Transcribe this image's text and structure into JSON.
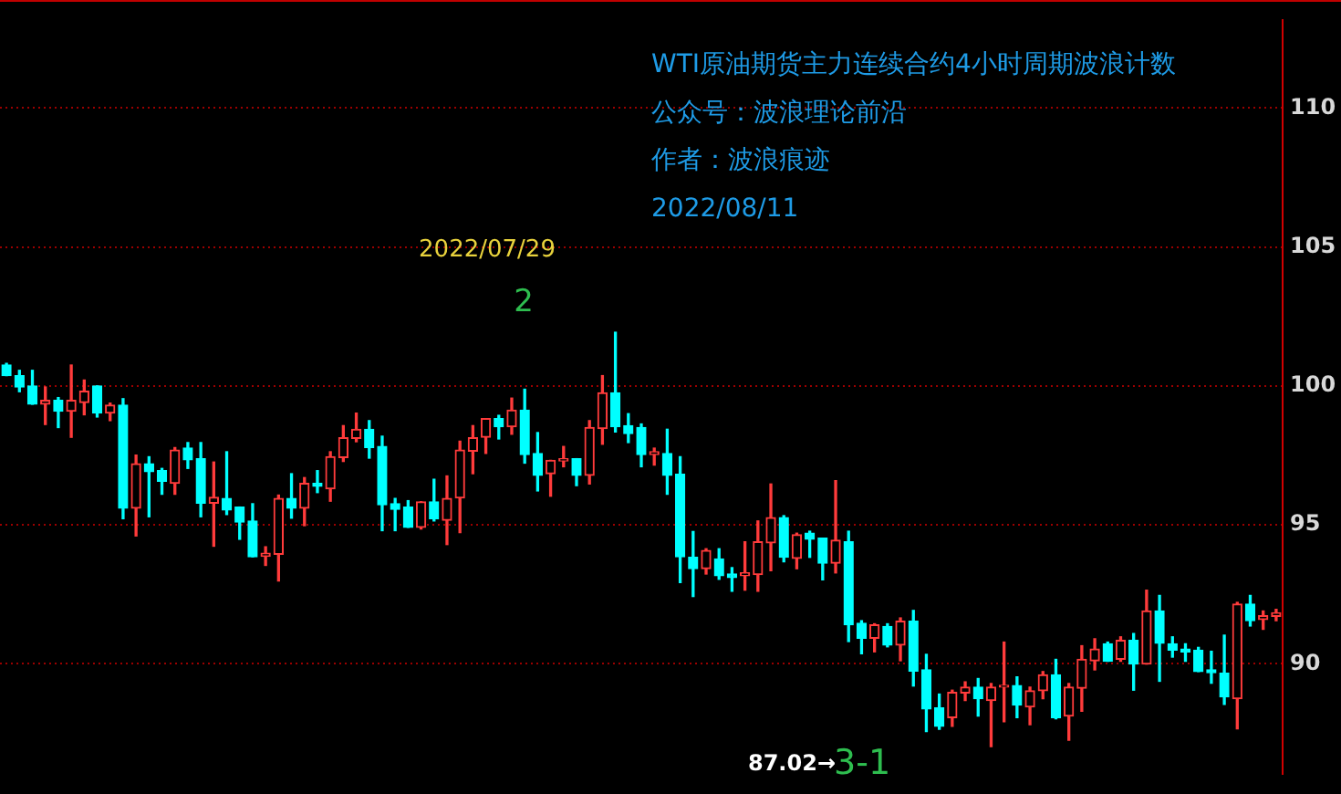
{
  "chart_data": {
    "type": "candlestick",
    "title": "WTI原油期货主力连续合约4小时周期波浪计数",
    "annotations": [
      "公众号：波浪理论前沿",
      "作者：波浪痕迹",
      "2022/08/11",
      "2022/07/29",
      "2",
      "87.02→",
      "3-1"
    ],
    "categories": [
      null,
      null,
      null,
      null,
      null,
      null,
      null,
      null,
      null,
      null,
      null,
      null,
      null,
      null,
      null,
      null,
      null,
      null,
      null,
      null,
      null,
      null,
      null,
      null,
      null,
      null,
      null,
      null,
      null,
      null,
      null,
      null,
      null,
      null,
      null,
      null,
      null,
      null,
      null,
      null,
      null,
      null,
      null,
      null,
      null,
      null,
      null,
      null,
      null,
      null,
      null,
      null,
      null,
      null,
      null,
      null,
      null,
      null,
      null,
      null,
      null,
      null,
      null,
      null,
      null,
      null,
      null,
      null,
      null,
      null,
      null,
      null,
      null,
      null,
      null,
      null,
      null,
      null,
      null,
      null,
      null,
      null,
      null,
      null,
      null,
      null,
      null,
      null,
      null,
      null,
      null,
      null,
      null,
      null,
      null,
      null,
      null,
      null,
      null
    ],
    "ohlc": [
      [
        100.75,
        100.81,
        100.37,
        100.37
      ],
      [
        100.37,
        100.56,
        99.79,
        99.96
      ],
      [
        100.0,
        100.56,
        99.34,
        99.34
      ],
      [
        99.34,
        99.96,
        98.61,
        99.48
      ],
      [
        99.48,
        99.58,
        98.5,
        99.09
      ],
      [
        99.09,
        100.75,
        98.15,
        99.48
      ],
      [
        99.4,
        100.21,
        98.96,
        99.81
      ],
      [
        100.0,
        100.0,
        98.88,
        99.02
      ],
      [
        99.02,
        99.38,
        98.75,
        99.31
      ],
      [
        99.31,
        99.54,
        95.22,
        95.6
      ],
      [
        95.6,
        97.51,
        94.6,
        97.2
      ],
      [
        97.2,
        97.45,
        95.29,
        96.91
      ],
      [
        96.95,
        97.03,
        96.1,
        96.57
      ],
      [
        96.49,
        97.78,
        96.1,
        97.69
      ],
      [
        97.76,
        97.96,
        97.03,
        97.34
      ],
      [
        97.38,
        97.96,
        95.29,
        95.78
      ],
      [
        95.78,
        97.26,
        94.23,
        95.99
      ],
      [
        95.95,
        97.63,
        95.37,
        95.53
      ],
      [
        95.64,
        95.64,
        94.48,
        95.1
      ],
      [
        95.14,
        95.76,
        93.85,
        93.85
      ],
      [
        93.87,
        94.21,
        93.54,
        93.98
      ],
      [
        93.94,
        96.07,
        92.98,
        95.95
      ],
      [
        95.95,
        96.84,
        95.24,
        95.6
      ],
      [
        95.6,
        96.7,
        94.97,
        96.49
      ],
      [
        96.49,
        96.95,
        96.16,
        96.39
      ],
      [
        96.3,
        97.63,
        95.85,
        97.45
      ],
      [
        97.42,
        98.57,
        97.28,
        98.13
      ],
      [
        98.11,
        99.02,
        97.99,
        98.44
      ],
      [
        98.44,
        98.75,
        97.4,
        97.78
      ],
      [
        97.82,
        98.19,
        94.79,
        95.72
      ],
      [
        95.76,
        95.95,
        94.79,
        95.56
      ],
      [
        95.64,
        95.87,
        94.91,
        94.91
      ],
      [
        94.91,
        95.83,
        94.85,
        95.83
      ],
      [
        95.83,
        96.64,
        95.14,
        95.22
      ],
      [
        95.16,
        96.76,
        94.29,
        95.95
      ],
      [
        95.97,
        98.01,
        94.72,
        97.69
      ],
      [
        97.65,
        98.57,
        96.84,
        98.13
      ],
      [
        98.15,
        98.82,
        97.57,
        98.82
      ],
      [
        98.82,
        98.94,
        98.09,
        98.53
      ],
      [
        98.53,
        99.56,
        98.26,
        99.13
      ],
      [
        99.13,
        99.88,
        97.22,
        97.53
      ],
      [
        97.57,
        98.32,
        96.22,
        96.78
      ],
      [
        96.84,
        97.32,
        96.03,
        97.32
      ],
      [
        97.3,
        97.82,
        97.09,
        97.38
      ],
      [
        97.38,
        97.38,
        96.41,
        96.78
      ],
      [
        96.78,
        98.75,
        96.47,
        98.5
      ],
      [
        98.46,
        100.37,
        97.9,
        99.75
      ],
      [
        99.75,
        101.93,
        98.34,
        98.53
      ],
      [
        98.57,
        99.0,
        97.96,
        98.28
      ],
      [
        98.5,
        98.63,
        97.09,
        97.53
      ],
      [
        97.53,
        97.76,
        97.15,
        97.63
      ],
      [
        97.57,
        98.44,
        96.1,
        96.78
      ],
      [
        96.82,
        97.45,
        92.92,
        93.85
      ],
      [
        93.83,
        94.76,
        92.42,
        93.42
      ],
      [
        93.42,
        94.14,
        93.23,
        94.08
      ],
      [
        93.77,
        94.14,
        93.04,
        93.17
      ],
      [
        93.23,
        93.46,
        92.61,
        93.1
      ],
      [
        93.17,
        94.39,
        92.65,
        93.27
      ],
      [
        93.21,
        95.14,
        92.61,
        94.39
      ],
      [
        94.35,
        96.47,
        93.35,
        95.26
      ],
      [
        95.26,
        95.33,
        93.67,
        93.83
      ],
      [
        93.79,
        94.7,
        93.42,
        94.64
      ],
      [
        94.7,
        94.77,
        93.83,
        94.48
      ],
      [
        94.52,
        94.52,
        93.02,
        93.62
      ],
      [
        93.62,
        96.59,
        93.27,
        94.45
      ],
      [
        94.39,
        94.77,
        90.8,
        91.4
      ],
      [
        91.46,
        91.55,
        90.36,
        90.92
      ],
      [
        90.92,
        91.44,
        90.43,
        91.4
      ],
      [
        91.34,
        91.44,
        90.61,
        90.67
      ],
      [
        90.67,
        91.65,
        90.11,
        91.53
      ],
      [
        91.53,
        91.92,
        89.2,
        89.74
      ],
      [
        89.78,
        90.34,
        87.56,
        88.37
      ],
      [
        88.41,
        88.91,
        87.64,
        87.75
      ],
      [
        88.06,
        89.05,
        87.75,
        88.97
      ],
      [
        88.95,
        89.35,
        88.68,
        89.16
      ],
      [
        89.16,
        89.47,
        88.12,
        88.74
      ],
      [
        88.68,
        89.29,
        87.02,
        89.16
      ],
      [
        89.16,
        90.78,
        87.91,
        89.22
      ],
      [
        89.22,
        89.53,
        88.06,
        88.51
      ],
      [
        88.45,
        89.16,
        87.81,
        89.03
      ],
      [
        89.03,
        89.72,
        88.74,
        89.6
      ],
      [
        89.6,
        90.16,
        88.02,
        88.06
      ],
      [
        88.12,
        89.29,
        87.25,
        89.16
      ],
      [
        89.12,
        90.65,
        88.29,
        90.16
      ],
      [
        90.11,
        90.9,
        89.78,
        90.53
      ],
      [
        90.72,
        90.78,
        90.09,
        90.09
      ],
      [
        90.16,
        90.97,
        90.09,
        90.84
      ],
      [
        90.84,
        91.09,
        89.05,
        89.99
      ],
      [
        89.99,
        92.65,
        89.99,
        91.9
      ],
      [
        91.9,
        92.46,
        89.37,
        90.74
      ],
      [
        90.72,
        90.97,
        90.24,
        90.49
      ],
      [
        90.53,
        90.72,
        90.09,
        90.43
      ],
      [
        90.49,
        90.59,
        89.72,
        89.72
      ],
      [
        89.78,
        90.45,
        89.3,
        89.68
      ],
      [
        89.66,
        91.03,
        88.54,
        88.81
      ],
      [
        88.74,
        92.21,
        87.66,
        92.15
      ],
      [
        92.15,
        92.46,
        91.36,
        91.55
      ],
      [
        91.59,
        91.9,
        91.24,
        91.73
      ],
      [
        91.71,
        91.96,
        91.55,
        91.84
      ]
    ],
    "colors": [
      "#00ffff",
      "#00ffff",
      "#00ffff",
      "#ff3b3b",
      "#00ffff",
      "#ff3b3b",
      "#ff3b3b",
      "#00ffff",
      "#ff3b3b",
      "#00ffff",
      "#ff3b3b",
      "#00ffff",
      "#00ffff",
      "#ff3b3b",
      "#00ffff",
      "#00ffff",
      "#ff3b3b",
      "#00ffff",
      "#00ffff",
      "#00ffff",
      "#ff3b3b",
      "#ff3b3b",
      "#00ffff",
      "#ff3b3b",
      "#00ffff",
      "#ff3b3b",
      "#ff3b3b",
      "#ff3b3b",
      "#00ffff",
      "#00ffff",
      "#00ffff",
      "#00ffff",
      "#ff3b3b",
      "#00ffff",
      "#ff3b3b",
      "#ff3b3b",
      "#ff3b3b",
      "#ff3b3b",
      "#00ffff",
      "#ff3b3b",
      "#00ffff",
      "#00ffff",
      "#ff3b3b",
      "#ff3b3b",
      "#00ffff",
      "#ff3b3b",
      "#ff3b3b",
      "#00ffff",
      "#00ffff",
      "#00ffff",
      "#ff3b3b",
      "#00ffff",
      "#00ffff",
      "#00ffff",
      "#ff3b3b",
      "#00ffff",
      "#00ffff",
      "#ff3b3b",
      "#ff3b3b",
      "#ff3b3b",
      "#00ffff",
      "#ff3b3b",
      "#00ffff",
      "#00ffff",
      "#ff3b3b",
      "#00ffff",
      "#00ffff",
      "#ff3b3b",
      "#00ffff",
      "#ff3b3b",
      "#00ffff",
      "#00ffff",
      "#00ffff",
      "#ff3b3b",
      "#ff3b3b",
      "#00ffff",
      "#ff3b3b",
      "#ff3b3b",
      "#00ffff",
      "#ff3b3b",
      "#ff3b3b",
      "#00ffff",
      "#ff3b3b",
      "#ff3b3b",
      "#ff3b3b",
      "#00ffff",
      "#ff3b3b",
      "#00ffff",
      "#ff3b3b",
      "#00ffff",
      "#00ffff",
      "#00ffff",
      "#00ffff",
      "#00ffff",
      "#00ffff",
      "#ff3b3b",
      "#00ffff",
      "#ff3b3b",
      "#ff3b3b"
    ],
    "ylim": [
      86.05,
      113.15
    ],
    "yticks": [
      90,
      95,
      100,
      105,
      110
    ],
    "grid": "y",
    "tick_labels": "y"
  }
}
